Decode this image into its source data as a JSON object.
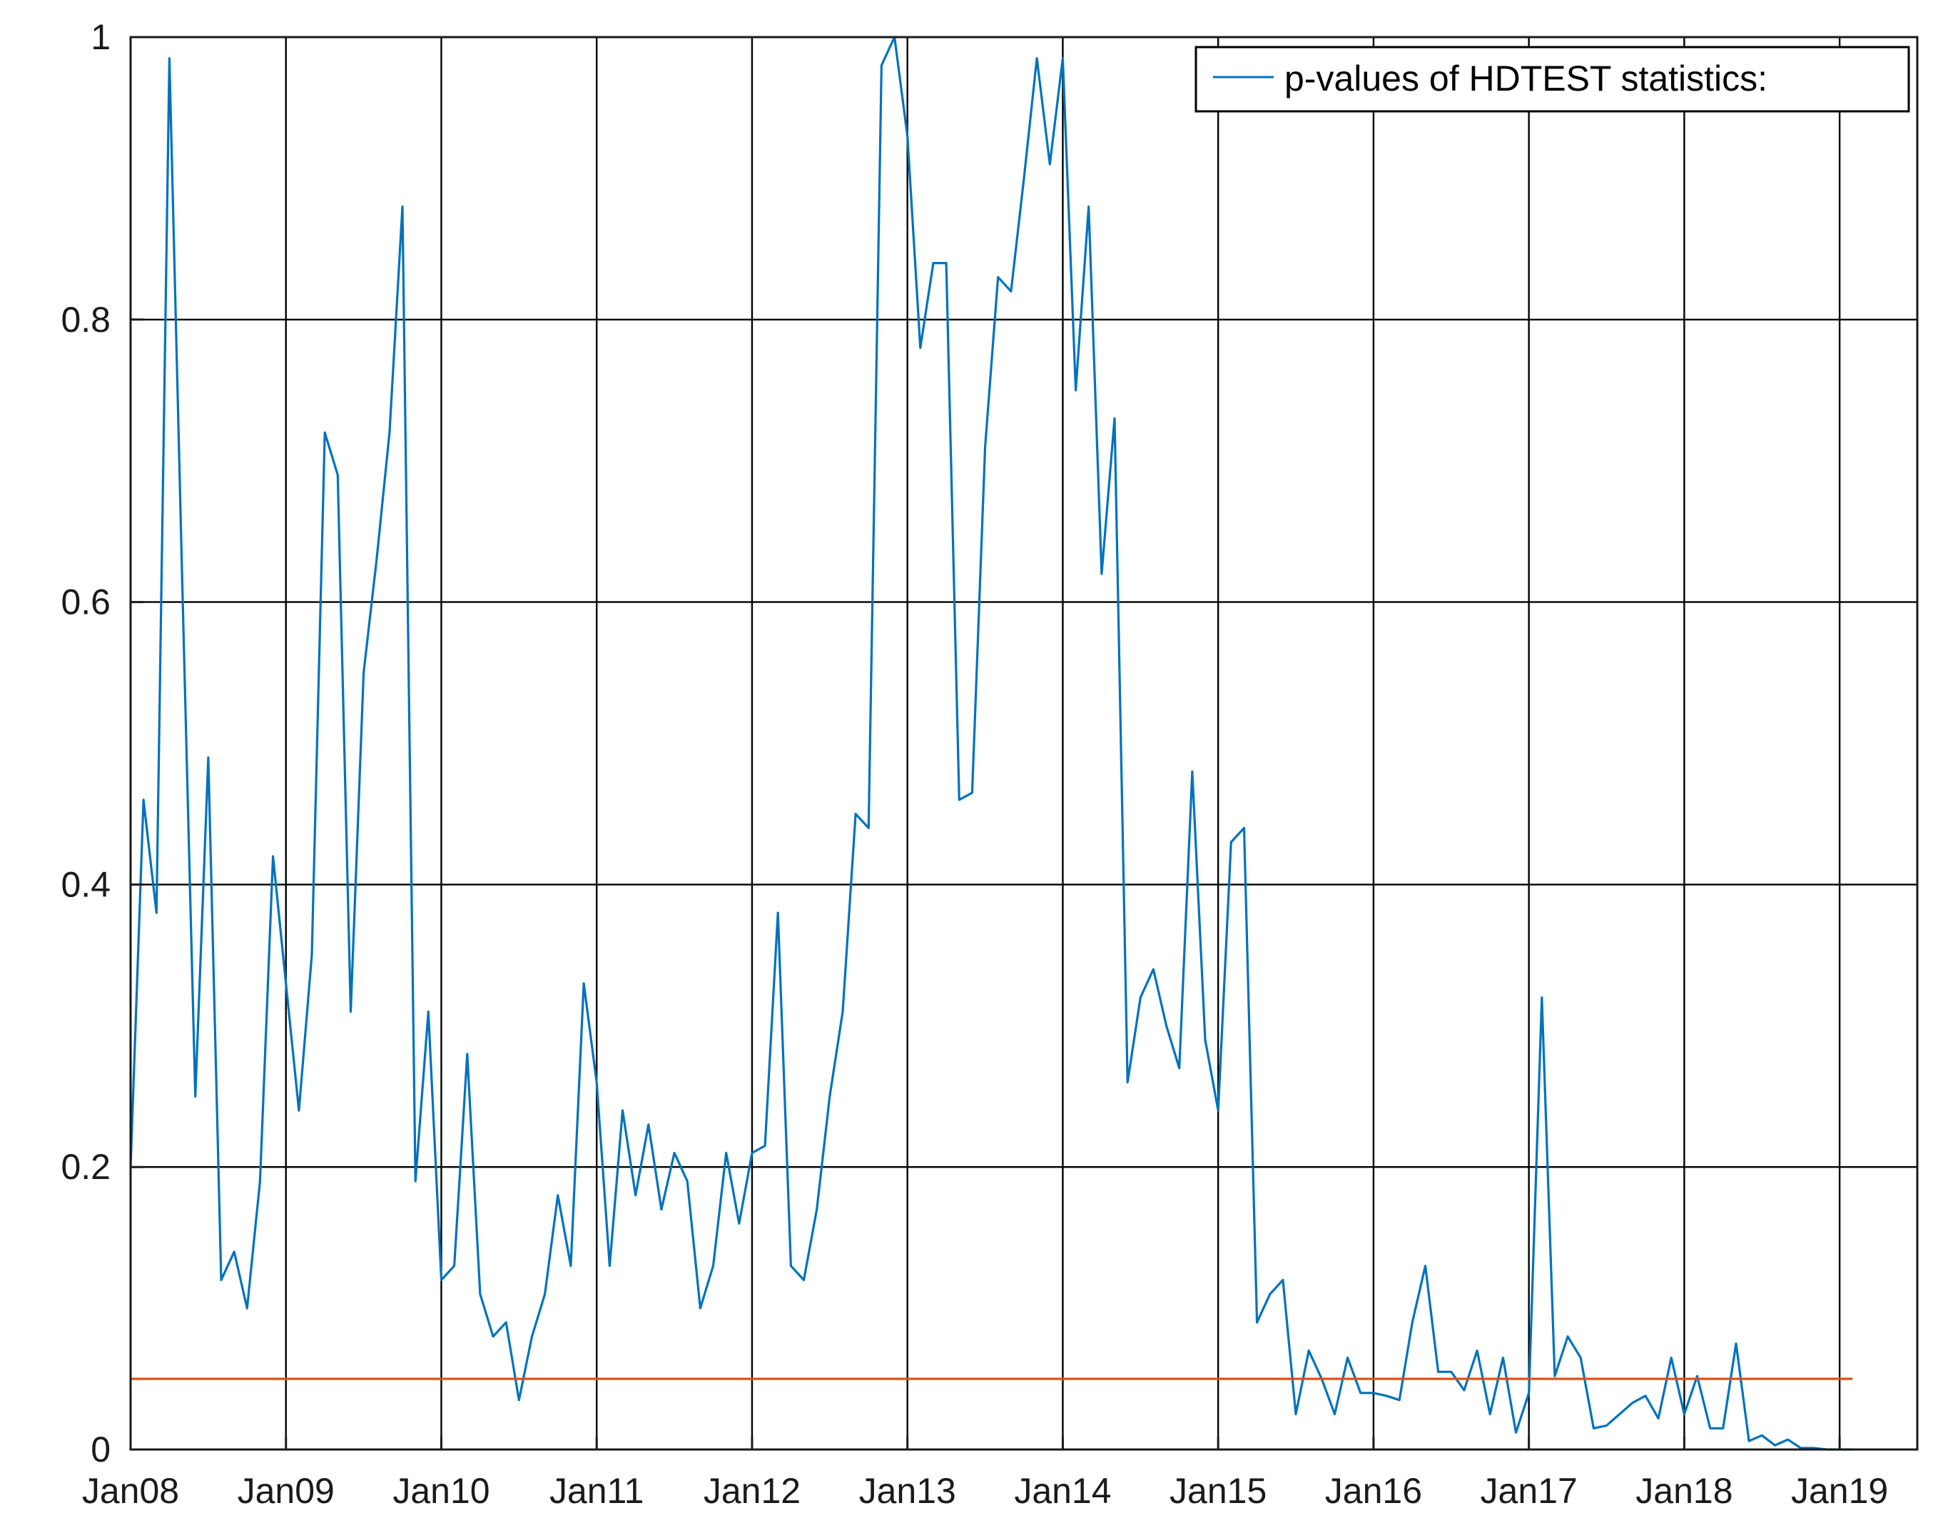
{
  "chart_data": {
    "type": "line",
    "title": "",
    "xlabel": "",
    "ylabel": "",
    "x_tick_labels": [
      "Jan08",
      "Jan09",
      "Jan10",
      "Jan11",
      "Jan12",
      "Jan13",
      "Jan14",
      "Jan15",
      "Jan16",
      "Jan17",
      "Jan18",
      "Jan19"
    ],
    "y_tick_labels": [
      "0",
      "0.2",
      "0.4",
      "0.6",
      "0.8",
      "1"
    ],
    "y_ticks": [
      0,
      0.2,
      0.4,
      0.6,
      0.8,
      1
    ],
    "xlim": [
      "2008-01",
      "2019-07"
    ],
    "ylim": [
      0,
      1
    ],
    "grid": true,
    "legend_position": "top-right",
    "colors": {
      "series": "#0072BD",
      "threshold": "#D95319",
      "grid": "#000000"
    },
    "series": [
      {
        "name": "p-values of HDTEST statistics:",
        "x": [
          "2008-01",
          "2008-02",
          "2008-03",
          "2008-04",
          "2008-05",
          "2008-06",
          "2008-07",
          "2008-08",
          "2008-09",
          "2008-10",
          "2008-11",
          "2008-12",
          "2009-01",
          "2009-02",
          "2009-03",
          "2009-04",
          "2009-05",
          "2009-06",
          "2009-07",
          "2009-08",
          "2009-09",
          "2009-10",
          "2009-11",
          "2009-12",
          "2010-01",
          "2010-02",
          "2010-03",
          "2010-04",
          "2010-05",
          "2010-06",
          "2010-07",
          "2010-08",
          "2010-09",
          "2010-10",
          "2010-11",
          "2010-12",
          "2011-01",
          "2011-02",
          "2011-03",
          "2011-04",
          "2011-05",
          "2011-06",
          "2011-07",
          "2011-08",
          "2011-09",
          "2011-10",
          "2011-11",
          "2011-12",
          "2012-01",
          "2012-02",
          "2012-03",
          "2012-04",
          "2012-05",
          "2012-06",
          "2012-07",
          "2012-08",
          "2012-09",
          "2012-10",
          "2012-11",
          "2012-12",
          "2013-01",
          "2013-02",
          "2013-03",
          "2013-04",
          "2013-05",
          "2013-06",
          "2013-07",
          "2013-08",
          "2013-09",
          "2013-10",
          "2013-11",
          "2013-12",
          "2014-01",
          "2014-02",
          "2014-03",
          "2014-04",
          "2014-05",
          "2014-06",
          "2014-07",
          "2014-08",
          "2014-09",
          "2014-10",
          "2014-11",
          "2014-12",
          "2015-01",
          "2015-02",
          "2015-03",
          "2015-04",
          "2015-05",
          "2015-06",
          "2015-07",
          "2015-08",
          "2015-09",
          "2015-10",
          "2015-11",
          "2015-12",
          "2016-01",
          "2016-02",
          "2016-03",
          "2016-04",
          "2016-05",
          "2016-06",
          "2016-07",
          "2016-08",
          "2016-09",
          "2016-10",
          "2016-11",
          "2016-12",
          "2017-01",
          "2017-02",
          "2017-03",
          "2017-04",
          "2017-05",
          "2017-06",
          "2017-07",
          "2017-08",
          "2017-09",
          "2017-10",
          "2017-11",
          "2017-12",
          "2018-01",
          "2018-02",
          "2018-03",
          "2018-04",
          "2018-05",
          "2018-06",
          "2018-07",
          "2018-08",
          "2018-09",
          "2018-10",
          "2018-11",
          "2018-12",
          "2019-01",
          "2019-02"
        ],
        "y": [
          0.2,
          0.46,
          0.38,
          0.985,
          0.61,
          0.25,
          0.49,
          0.12,
          0.14,
          0.1,
          0.19,
          0.42,
          0.33,
          0.24,
          0.35,
          0.72,
          0.69,
          0.31,
          0.55,
          0.63,
          0.72,
          0.88,
          0.19,
          0.31,
          0.12,
          0.13,
          0.28,
          0.11,
          0.08,
          0.09,
          0.035,
          0.08,
          0.11,
          0.18,
          0.13,
          0.33,
          0.26,
          0.13,
          0.24,
          0.18,
          0.23,
          0.17,
          0.21,
          0.19,
          0.1,
          0.13,
          0.21,
          0.16,
          0.21,
          0.215,
          0.38,
          0.13,
          0.12,
          0.17,
          0.25,
          0.31,
          0.45,
          0.44,
          0.98,
          1.0,
          0.93,
          0.78,
          0.84,
          0.84,
          0.46,
          0.465,
          0.71,
          0.83,
          0.82,
          0.9,
          0.985,
          0.91,
          0.985,
          0.75,
          0.88,
          0.62,
          0.73,
          0.26,
          0.32,
          0.34,
          0.3,
          0.27,
          0.48,
          0.29,
          0.24,
          0.43,
          0.44,
          0.09,
          0.11,
          0.12,
          0.025,
          0.07,
          0.05,
          0.025,
          0.065,
          0.04,
          0.04,
          0.038,
          0.035,
          0.09,
          0.13,
          0.055,
          0.055,
          0.042,
          0.07,
          0.025,
          0.065,
          0.012,
          0.04,
          0.32,
          0.052,
          0.08,
          0.065,
          0.015,
          0.017,
          0.025,
          0.033,
          0.038,
          0.022,
          0.065,
          0.025,
          0.052,
          0.015,
          0.015,
          0.075,
          0.006,
          0.01,
          0.003,
          0.007,
          0.001,
          0.001,
          0.0,
          0.0,
          0.0
        ]
      },
      {
        "x": [
          "2008-01",
          "2019-02"
        ],
        "y": [
          0.05,
          0.05
        ]
      }
    ]
  }
}
